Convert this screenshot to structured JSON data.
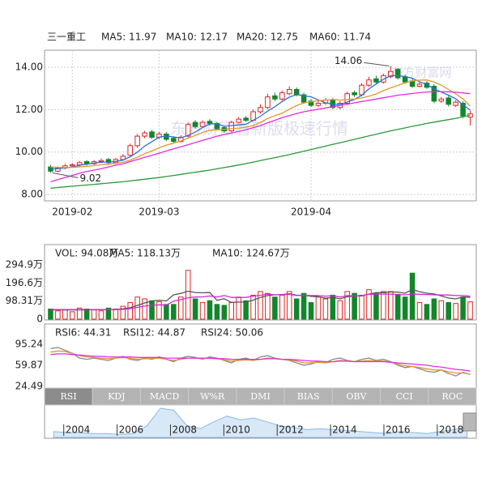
{
  "chart_data": [
    {
      "type": "candlestick",
      "title": "三一重工",
      "categories": [
        null,
        null,
        null,
        "2019-02",
        null,
        null,
        null,
        null,
        null,
        null,
        null,
        null,
        null,
        null,
        null,
        "2019-03",
        null,
        null,
        null,
        null,
        null,
        null,
        null,
        null,
        null,
        null,
        null,
        null,
        null,
        null,
        null,
        null,
        null,
        null,
        null,
        null,
        "2019-04",
        null,
        null,
        null,
        null,
        null,
        null,
        null,
        null,
        null,
        null,
        null,
        null,
        null,
        null,
        null,
        null,
        null,
        null,
        null,
        null,
        null,
        null
      ],
      "open": [
        9.3,
        9.1,
        9.25,
        9.35,
        9.4,
        9.55,
        9.45,
        9.55,
        9.65,
        9.5,
        9.65,
        9.85,
        10.3,
        10.75,
        10.95,
        10.7,
        10.85,
        10.65,
        10.5,
        10.75,
        11.4,
        11.2,
        11.45,
        11.35,
        11.15,
        11.0,
        11.4,
        11.6,
        11.5,
        11.9,
        12.1,
        12.65,
        12.5,
        12.75,
        12.95,
        12.7,
        12.4,
        12.2,
        12.3,
        12.45,
        12.1,
        12.3,
        12.8,
        12.7,
        13.15,
        13.45,
        13.3,
        13.55,
        13.9,
        13.55,
        13.35,
        13.1,
        13.25,
        13.1,
        12.4,
        12.55,
        12.2,
        12.3,
        11.65
      ],
      "high": [
        9.4,
        9.32,
        9.45,
        9.48,
        9.58,
        9.62,
        9.62,
        9.7,
        9.72,
        9.72,
        9.9,
        10.4,
        10.85,
        11.0,
        11.05,
        10.95,
        10.95,
        10.75,
        10.8,
        11.4,
        11.5,
        11.5,
        11.55,
        11.42,
        11.25,
        11.48,
        11.65,
        11.7,
        12.0,
        12.25,
        12.75,
        12.8,
        12.9,
        13.1,
        13.05,
        12.8,
        12.5,
        12.4,
        12.55,
        12.55,
        12.4,
        12.85,
        12.9,
        13.25,
        13.55,
        13.6,
        13.7,
        14.06,
        13.95,
        13.65,
        13.45,
        13.3,
        13.35,
        13.2,
        12.6,
        12.65,
        12.45,
        12.4,
        11.95
      ],
      "low": [
        9.02,
        9.05,
        9.18,
        9.28,
        9.32,
        9.38,
        9.4,
        9.48,
        9.42,
        9.45,
        9.6,
        9.8,
        10.2,
        10.65,
        10.62,
        10.62,
        10.52,
        10.42,
        10.45,
        10.7,
        11.1,
        11.15,
        11.25,
        11.02,
        10.92,
        10.95,
        11.35,
        11.42,
        11.45,
        11.82,
        12.02,
        12.4,
        12.42,
        12.68,
        12.62,
        12.28,
        12.12,
        12.12,
        12.22,
        12.02,
        12.02,
        12.22,
        12.6,
        12.62,
        13.08,
        13.22,
        13.22,
        13.48,
        13.42,
        13.22,
        13.02,
        13.05,
        12.98,
        12.3,
        12.32,
        12.15,
        12.12,
        11.6,
        11.25
      ],
      "close": [
        9.1,
        9.25,
        9.35,
        9.4,
        9.5,
        9.45,
        9.55,
        9.6,
        9.5,
        9.65,
        9.8,
        10.3,
        10.75,
        10.9,
        10.7,
        10.85,
        10.6,
        10.5,
        10.7,
        11.3,
        11.2,
        11.4,
        11.35,
        11.1,
        11.0,
        11.4,
        11.55,
        11.5,
        11.9,
        12.1,
        12.6,
        12.5,
        12.8,
        12.95,
        12.7,
        12.35,
        12.2,
        12.3,
        12.45,
        12.1,
        12.3,
        12.75,
        12.7,
        13.15,
        13.4,
        13.3,
        13.6,
        13.8,
        13.5,
        13.3,
        13.1,
        13.2,
        13.05,
        12.4,
        12.5,
        12.25,
        12.35,
        11.7,
        11.8
      ],
      "up_color": "#e02424",
      "down_color": "#12862a",
      "series": [
        {
          "name": "MA5: 11.97",
          "color": "#2f6fdc",
          "values": [
            9.2,
            9.22,
            9.25,
            9.3,
            9.38,
            9.43,
            9.48,
            9.52,
            9.53,
            9.56,
            9.62,
            9.78,
            10.0,
            10.28,
            10.49,
            10.7,
            10.76,
            10.71,
            10.67,
            10.79,
            10.94,
            11.15,
            11.33,
            11.33,
            11.21,
            11.25,
            11.28,
            11.31,
            11.49,
            11.69,
            11.93,
            12.14,
            12.38,
            12.59,
            12.71,
            12.66,
            12.6,
            12.46,
            12.32,
            12.26,
            12.24,
            12.36,
            12.48,
            12.68,
            12.98,
            13.21,
            13.43,
            13.6,
            13.6,
            13.56,
            13.48,
            13.32,
            13.19,
            12.98,
            12.83,
            12.68,
            12.51,
            12.24,
            11.97
          ]
        },
        {
          "name": "MA10: 12.17",
          "color": "#e0982c",
          "values": [
            9.3,
            9.28,
            9.27,
            9.28,
            9.3,
            9.33,
            9.36,
            9.4,
            9.43,
            9.46,
            9.52,
            9.62,
            9.76,
            9.92,
            10.05,
            10.2,
            10.33,
            10.42,
            10.52,
            10.66,
            10.78,
            10.92,
            11.03,
            11.05,
            11.07,
            11.1,
            11.13,
            11.17,
            11.25,
            11.4,
            11.58,
            11.72,
            11.83,
            12.02,
            12.19,
            12.32,
            12.37,
            12.42,
            12.45,
            12.48,
            12.45,
            12.48,
            12.5,
            12.55,
            12.63,
            12.74,
            12.89,
            13.03,
            13.14,
            13.27,
            13.35,
            13.39,
            13.4,
            13.3,
            13.15,
            12.95,
            12.75,
            12.5,
            12.17
          ]
        },
        {
          "name": "MA20: 12.75",
          "color": "#e62ae6",
          "values": [
            8.6,
            8.7,
            8.8,
            8.9,
            9.0,
            9.08,
            9.15,
            9.22,
            9.3,
            9.38,
            9.45,
            9.55,
            9.65,
            9.75,
            9.85,
            9.95,
            10.05,
            10.15,
            10.25,
            10.35,
            10.45,
            10.55,
            10.65,
            10.75,
            10.83,
            10.9,
            10.97,
            11.05,
            11.15,
            11.25,
            11.38,
            11.5,
            11.62,
            11.72,
            11.82,
            11.9,
            11.96,
            12.02,
            12.08,
            12.14,
            12.2,
            12.26,
            12.32,
            12.38,
            12.44,
            12.5,
            12.56,
            12.62,
            12.68,
            12.72,
            12.76,
            12.8,
            12.83,
            12.85,
            12.85,
            12.84,
            12.82,
            12.79,
            12.75
          ]
        },
        {
          "name": "MA60: 11.74",
          "color": "#2a9a3a",
          "values": [
            8.3,
            8.33,
            8.36,
            8.39,
            8.42,
            8.45,
            8.48,
            8.51,
            8.54,
            8.57,
            8.6,
            8.64,
            8.68,
            8.72,
            8.76,
            8.8,
            8.85,
            8.9,
            8.95,
            9.0,
            9.05,
            9.1,
            9.15,
            9.21,
            9.27,
            9.33,
            9.39,
            9.46,
            9.53,
            9.6,
            9.67,
            9.74,
            9.81,
            9.88,
            9.96,
            10.04,
            10.12,
            10.2,
            10.28,
            10.36,
            10.44,
            10.52,
            10.6,
            10.68,
            10.76,
            10.84,
            10.92,
            11.0,
            11.07,
            11.14,
            11.21,
            11.28,
            11.35,
            11.41,
            11.47,
            11.53,
            11.59,
            11.66,
            11.74
          ]
        }
      ],
      "ylim": [
        7.7,
        14.8
      ],
      "yticks": [
        {
          "value": 14,
          "label": "14.00"
        },
        {
          "value": 12,
          "label": "12.00"
        },
        {
          "value": 10,
          "label": "10.00"
        },
        {
          "value": 8,
          "label": "8.00"
        }
      ],
      "grid": true
    },
    {
      "type": "bar",
      "series": [
        {
          "name": "VOL: 94.08万",
          "type": "bar",
          "color": "#e040c8",
          "values": [
            55,
            45,
            50,
            40,
            60,
            55,
            50,
            45,
            60,
            55,
            70,
            90,
            120,
            110,
            100,
            95,
            80,
            80,
            120,
            265,
            110,
            90,
            100,
            80,
            75,
            90,
            120,
            100,
            130,
            150,
            140,
            120,
            130,
            150,
            110,
            140,
            90,
            120,
            110,
            130,
            100,
            150,
            140,
            130,
            160,
            140,
            150,
            150,
            135,
            120,
            250,
            90,
            80,
            110,
            100,
            90,
            85,
            120,
            94.08
          ]
        },
        {
          "name": "MA5: 118.13万",
          "type": "line",
          "color": "#555555",
          "values": [
            50,
            50,
            50,
            50,
            50,
            50,
            52,
            52,
            52,
            53,
            56,
            62,
            75,
            88,
            98,
            103,
            99,
            132,
            140,
            152,
            145,
            143,
            145,
            102,
            111,
            91,
            93,
            93,
            103,
            118,
            128,
            132,
            134,
            138,
            130,
            130,
            124,
            122,
            114,
            118,
            110,
            122,
            126,
            126,
            136,
            144,
            144,
            148,
            147,
            141,
            161,
            149,
            141,
            137,
            126,
            115,
            110,
            121,
            118.13
          ]
        },
        {
          "name": "MA10: 124.67万",
          "type": "line",
          "color": "#d428d4",
          "values": [
            52,
            52,
            52,
            52,
            52,
            52,
            52,
            52,
            52,
            52,
            53,
            57,
            64,
            71,
            75,
            78,
            76,
            98,
            106,
            116,
            120,
            121,
            126,
            120,
            128,
            118,
            118,
            118,
            125,
            130,
            136,
            132,
            133,
            135,
            128,
            130,
            128,
            128,
            125,
            127,
            120,
            128,
            126,
            128,
            135,
            136,
            136,
            136,
            134,
            132,
            136,
            135,
            134,
            132,
            131,
            131,
            128,
            128,
            124.67
          ]
        }
      ],
      "ylim": [
        0,
        294.9
      ],
      "yticks": [
        {
          "value": 294.9,
          "label": "294.9万"
        },
        {
          "value": 196.6,
          "label": "196.6万"
        },
        {
          "value": 98.31,
          "label": "98.31万"
        },
        0
      ]
    },
    {
      "type": "line",
      "series": [
        {
          "name": "RSI6: 44.31",
          "color": "#8a8a8a",
          "values": [
            88,
            90,
            85,
            80,
            72,
            70,
            72,
            70,
            68,
            72,
            75,
            70,
            68,
            72,
            70,
            74,
            70,
            66,
            72,
            75,
            73,
            70,
            74,
            72,
            68,
            64,
            70,
            72,
            68,
            74,
            76,
            72,
            70,
            68,
            64,
            60,
            62,
            66,
            64,
            70,
            72,
            68,
            66,
            70,
            72,
            68,
            70,
            66,
            60,
            56,
            58,
            54,
            50,
            48,
            52,
            46,
            42,
            48,
            44.31
          ]
        },
        {
          "name": "RSI12: 44.87",
          "color": "#e0982c",
          "values": [
            82,
            84,
            83,
            80,
            76,
            74,
            73,
            72,
            71,
            72,
            73,
            72,
            70,
            71,
            71,
            72,
            70,
            68,
            70,
            72,
            72,
            71,
            72,
            71,
            69,
            67,
            68,
            69,
            68,
            70,
            72,
            71,
            70,
            69,
            67,
            64,
            64,
            65,
            64,
            66,
            68,
            67,
            66,
            67,
            68,
            67,
            67,
            65,
            62,
            59,
            58,
            56,
            54,
            52,
            52,
            49,
            47,
            47,
            44.87
          ]
        },
        {
          "name": "RSI24: 50.06",
          "color": "#e62ae6",
          "values": [
            78,
            79,
            79,
            78,
            77,
            76,
            75,
            75,
            74,
            74,
            74,
            74,
            73,
            73,
            73,
            73,
            72,
            72,
            72,
            72,
            72,
            72,
            72,
            71,
            71,
            70,
            70,
            70,
            70,
            70,
            71,
            71,
            70,
            70,
            69,
            68,
            67,
            67,
            66,
            66,
            67,
            67,
            66,
            66,
            66,
            66,
            66,
            65,
            64,
            63,
            62,
            61,
            60,
            58,
            57,
            55,
            53,
            52,
            50.06
          ]
        }
      ],
      "ylim": [
        24.49,
        95.24
      ],
      "yticks": [
        95.24,
        59.87,
        24.49
      ]
    },
    {
      "type": "area",
      "color": "#8cb8e2",
      "categories": [
        null,
        "2004",
        null,
        null,
        null,
        "2006",
        null,
        null,
        null,
        "2008",
        null,
        null,
        null,
        "2010",
        null,
        null,
        null,
        "2012",
        null,
        null,
        null,
        "2014",
        null,
        null,
        null,
        "2016",
        null,
        null,
        null,
        "2018",
        null,
        null
      ],
      "values": [
        6,
        5,
        5,
        4,
        4,
        3,
        4,
        12,
        30,
        28,
        12,
        9,
        16,
        22,
        18,
        20,
        16,
        12,
        10,
        8,
        9,
        8,
        7,
        6,
        5,
        4,
        6,
        5,
        4,
        6,
        8,
        10
      ]
    }
  ],
  "tabs": [
    "RSI",
    "KDJ",
    "MACD",
    "W%R",
    "DMI",
    "BIAS",
    "OBV",
    "CCI",
    "ROC"
  ],
  "watermark": [
    "东方财富网",
    "东方财富看新版极速行情"
  ]
}
